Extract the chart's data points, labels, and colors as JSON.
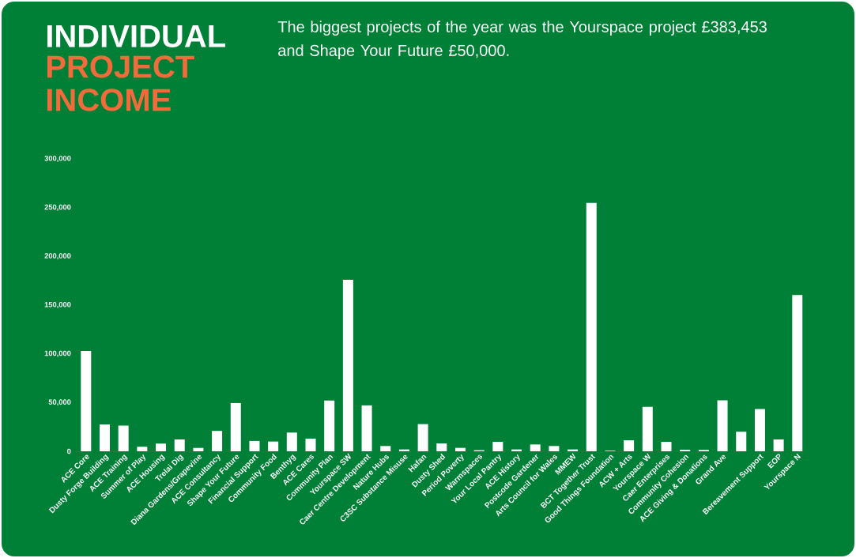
{
  "chart_data": {
    "type": "bar",
    "title": "INDIVIDUAL",
    "subtitle": "PROJECT INCOME",
    "annotations": [
      "The biggest projects of the year was the Yourspace project £383,453 and Shape Your Future £50,000."
    ],
    "categories": [
      "ACE Core",
      "Dusty Forge Building",
      "ACE Training",
      "Summer of Play",
      "ACE Housing",
      "Trelai Dig",
      "Diana Gardens/Grapevine",
      "ACE Consultancy",
      "Shape Your Future",
      "Financial Support",
      "Community Food",
      "Benthyg",
      "ACE Cares",
      "Community Plan",
      "Yourspace SW",
      "Caer Centre Development",
      "Nature Hubs",
      "C3SC Substance Misuse",
      "Hafan",
      "Dusty Shed",
      "Period Poverty",
      "Warmspaces",
      "Your Local Pantry",
      "ACE History",
      "Postcode Gardener",
      "Arts Council for Wales",
      "MMEW",
      "BCT Together Trust",
      "Good Things Foundation",
      "ACW + Arts",
      "Yourspace W",
      "Caer Enterprises",
      "Community Cohesion",
      "ACE Giving & Donations",
      "Grand Ave",
      null,
      "Bereavement Support",
      "EOP",
      "Yourspace N"
    ],
    "values": [
      103000,
      27600,
      26300,
      4600,
      7900,
      12200,
      3500,
      20900,
      49500,
      10600,
      10000,
      19200,
      13000,
      52000,
      176000,
      47100,
      5400,
      1900,
      27900,
      8100,
      3500,
      1100,
      9700,
      1900,
      7000,
      5400,
      1900,
      254800,
      500,
      11400,
      45500,
      9700,
      1600,
      1400,
      52300,
      20000,
      43300,
      12200,
      160300
    ],
    "color": "#ffffff",
    "ylim": [
      0,
      300000
    ],
    "yticks": [
      0,
      {
        "value": 50000,
        "label": "50,000"
      },
      {
        "value": 100000,
        "label": "100,000"
      },
      {
        "value": 150000,
        "label": "150,000"
      },
      {
        "value": 200000,
        "label": "200,000"
      },
      {
        "value": 250000,
        "label": "250,000"
      },
      {
        "value": 300000,
        "label": "300,000"
      }
    ]
  }
}
